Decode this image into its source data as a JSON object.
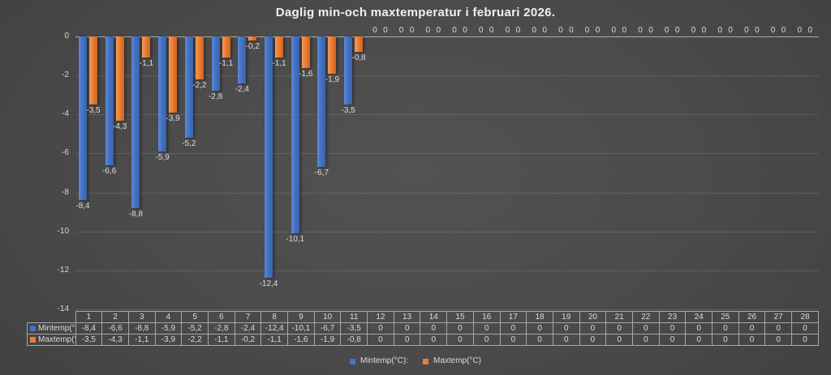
{
  "title": "Daglig min-och maxtemperatur i februari 2026.",
  "colors": {
    "min_series": "#4472C4",
    "max_series": "#ED7D31",
    "background_center": "#4f4f4f",
    "background_edge": "#242424",
    "text": "#dcdcdc",
    "table_border": "#a8a8a8"
  },
  "chart_data": {
    "type": "bar",
    "title": "Daglig min-och maxtemperatur i februari 2026.",
    "xlabel": "",
    "ylabel": "",
    "categories": [
      1,
      2,
      3,
      4,
      5,
      6,
      7,
      8,
      9,
      10,
      11,
      12,
      13,
      14,
      15,
      16,
      17,
      18,
      19,
      20,
      21,
      22,
      23,
      24,
      25,
      26,
      27,
      28
    ],
    "series": [
      {
        "name": "Mintemp(°C):",
        "color": "#4472C4",
        "values": [
          -8.4,
          -6.6,
          -8.8,
          -5.9,
          -5.2,
          -2.8,
          -2.4,
          -12.4,
          -10.1,
          -6.7,
          -3.5,
          0,
          0,
          0,
          0,
          0,
          0,
          0,
          0,
          0,
          0,
          0,
          0,
          0,
          0,
          0,
          0,
          0
        ]
      },
      {
        "name": "Maxtemp(°C)",
        "color": "#ED7D31",
        "values": [
          -3.5,
          -4.3,
          -1.1,
          -3.9,
          -2.2,
          -1.1,
          -0.2,
          -1.1,
          -1.6,
          -1.9,
          -0.8,
          0,
          0,
          0,
          0,
          0,
          0,
          0,
          0,
          0,
          0,
          0,
          0,
          0,
          0,
          0,
          0,
          0
        ]
      }
    ],
    "ylim": [
      -14,
      0
    ],
    "yticks": [
      0,
      -2,
      -4,
      -6,
      -8,
      -10,
      -12,
      -14
    ],
    "decimal_separator": ",",
    "grid": true,
    "data_labels": true,
    "legend_position": "bottom",
    "data_table_shown": true
  }
}
